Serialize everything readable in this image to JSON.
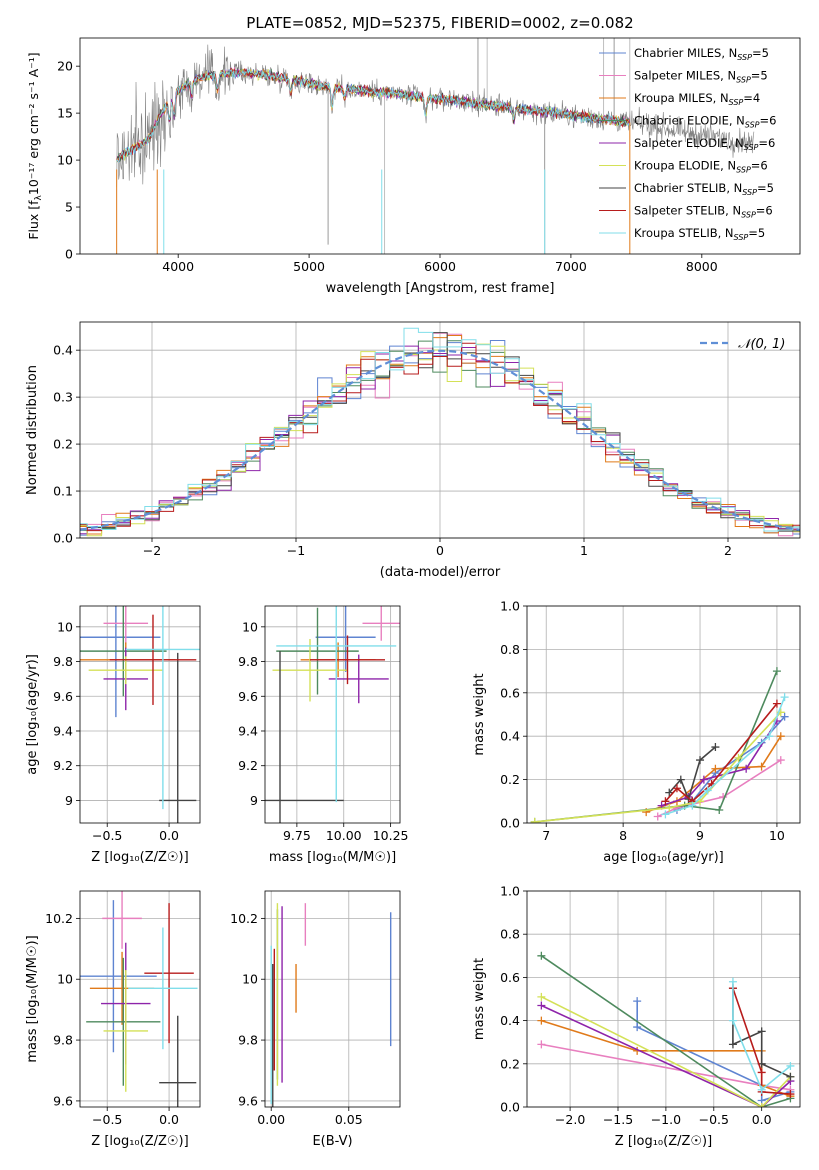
{
  "colors": {
    "Chabrier MILES": "#5f84d1",
    "Salpeter MILES": "#e87fbf",
    "Kroupa MILES": "#e07a1a",
    "Chabrier ELODIE": "#4e8a5e",
    "Salpeter ELODIE": "#8e24aa",
    "Kroupa ELODIE": "#d4e157",
    "Chabrier STELIB": "#444444",
    "Salpeter STELIB": "#b71c1c",
    "Kroupa STELIB": "#80deea",
    "data": "#808080",
    "gaussian": "#5f8fd6"
  },
  "chart_data": [
    {
      "panel": "spectrum",
      "type": "line",
      "title": "PLATE=0852, MJD=52375, FIBERID=0002, z=0.082",
      "xlabel": "wavelength [Angstrom, rest frame]",
      "ylabel": "Flux [f",
      "ylabel_sub": "λ",
      "ylabel_rest": "10⁻¹⁷ erg cm⁻² s⁻¹ A⁻¹]",
      "xlim": [
        3250,
        8750
      ],
      "ylim": [
        0,
        23
      ],
      "xticks": [
        4000,
        5000,
        6000,
        7000,
        8000
      ],
      "yticks": [
        0,
        5,
        10,
        15,
        20
      ],
      "grid": false,
      "legend_position": "top-right",
      "legend": [
        {
          "name": "Chabrier MILES",
          "nssp": "5"
        },
        {
          "name": "Salpeter MILES",
          "nssp": "5"
        },
        {
          "name": "Kroupa MILES",
          "nssp": "4"
        },
        {
          "name": "Chabrier ELODIE",
          "nssp": "6"
        },
        {
          "name": "Salpeter ELODIE",
          "nssp": "6"
        },
        {
          "name": "Kroupa ELODIE",
          "nssp": "6"
        },
        {
          "name": "Chabrier STELIB",
          "nssp": "5"
        },
        {
          "name": "Salpeter STELIB",
          "nssp": "6"
        },
        {
          "name": "Kroupa STELIB",
          "nssp": "5"
        }
      ],
      "continuum": {
        "x": [
          3530,
          3600,
          3700,
          3780,
          3850,
          3950,
          4100,
          4300,
          4500,
          4700,
          4900,
          5100,
          5300,
          5500,
          5700,
          5900,
          6100,
          6300,
          6500,
          6700,
          6900,
          7100,
          7300,
          7500,
          7700,
          7900,
          8100,
          8300,
          8400
        ],
        "y": [
          10,
          10.8,
          11.5,
          12.3,
          14.5,
          16.8,
          18.5,
          19.2,
          19.3,
          19.0,
          18.5,
          17.9,
          17.6,
          17.3,
          17.0,
          16.6,
          16.4,
          16.0,
          15.7,
          15.3,
          15.0,
          14.6,
          14.3,
          13.9,
          13.4,
          12.9,
          12.5,
          12.0,
          11.8
        ]
      },
      "model_end": 7450,
      "data_end": 8400
    },
    {
      "panel": "residuals",
      "type": "line",
      "title": "",
      "xlabel": "(data-model)/error",
      "ylabel": "Normed distribution",
      "xlim": [
        -2.5,
        2.5
      ],
      "ylim": [
        0,
        0.46
      ],
      "xticks": [
        -2,
        -1,
        0,
        1,
        2
      ],
      "yticks": [
        0,
        0.1,
        0.2,
        0.3,
        0.4
      ],
      "ytick_labels": [
        "0.0",
        "0.1",
        "0.2",
        "0.3",
        "0.4"
      ],
      "xtick_labels": [
        "−2",
        "−1",
        "0",
        "1",
        "2"
      ],
      "grid": true,
      "legend_position": "top-right",
      "legend": [
        {
          "name": "𝒩(0, 1)"
        }
      ],
      "bin_width": 0.1
    },
    {
      "panel": "Z-age",
      "type": "scatter",
      "xlabel": "Z [log₁₀(Z/Z☉)]",
      "ylabel": "age  [log₁₀(age/yr)]",
      "xlim": [
        -0.72,
        0.25
      ],
      "ylim": [
        8.87,
        10.12
      ],
      "xticks": [
        -0.5,
        0.0
      ],
      "xtick_labels": [
        "−0.5",
        "0.0"
      ],
      "yticks": [
        9.0,
        9.2,
        9.4,
        9.6,
        9.8,
        10.0
      ],
      "grid": true,
      "points": [
        {
          "series": "Chabrier MILES",
          "x": -0.43,
          "y": 9.94,
          "xerr": 0.36,
          "yerr": 0.46
        },
        {
          "series": "Salpeter MILES",
          "x": -0.35,
          "y": 10.02,
          "xerr": 0.18,
          "yerr": 0.12
        },
        {
          "series": "Kroupa MILES",
          "x": -0.35,
          "y": 9.81,
          "xerr": 0.4,
          "yerr": 0.1
        },
        {
          "series": "Chabrier ELODIE",
          "x": -0.37,
          "y": 9.86,
          "xerr": 0.35,
          "yerr": 0.26
        },
        {
          "series": "Salpeter ELODIE",
          "x": -0.35,
          "y": 9.7,
          "xerr": 0.18,
          "yerr": 0.18
        },
        {
          "series": "Kroupa ELODIE",
          "x": -0.35,
          "y": 9.75,
          "xerr": 0.3,
          "yerr": 0.08
        },
        {
          "series": "Chabrier STELIB",
          "x": 0.07,
          "y": 9.0,
          "xerr": 0.15,
          "yerr": 0.85
        },
        {
          "series": "Salpeter STELIB",
          "x": -0.13,
          "y": 9.81,
          "xerr": 0.35,
          "yerr": 0.26
        },
        {
          "series": "Kroupa STELIB",
          "x": -0.05,
          "y": 9.87,
          "xerr": 0.3,
          "yerr": 0.92
        }
      ]
    },
    {
      "panel": "mass-age",
      "type": "scatter",
      "xlabel": "mass [log₁₀(M/M☉)]",
      "ylabel": "",
      "xlim": [
        9.58,
        10.3
      ],
      "ylim": [
        8.87,
        10.12
      ],
      "xticks": [
        9.75,
        10.0,
        10.25
      ],
      "xtick_labels": [
        "9.75",
        "10.00",
        "10.25"
      ],
      "yticks": [
        9.0,
        9.2,
        9.4,
        9.6,
        9.8,
        10.0
      ],
      "grid": true,
      "points": [
        {
          "series": "Chabrier MILES",
          "x": 10.01,
          "y": 9.94,
          "xerr": 0.16,
          "yerr": 0.2
        },
        {
          "series": "Salpeter MILES",
          "x": 10.2,
          "y": 10.02,
          "xerr": 0.1,
          "yerr": 0.1
        },
        {
          "series": "Kroupa MILES",
          "x": 9.97,
          "y": 9.81,
          "xerr": 0.2,
          "yerr": 0.1
        },
        {
          "series": "Chabrier ELODIE",
          "x": 9.86,
          "y": 9.86,
          "xerr": 0.22,
          "yerr": 0.25
        },
        {
          "series": "Salpeter ELODIE",
          "x": 10.08,
          "y": 9.7,
          "xerr": 0.16,
          "yerr": 0.14
        },
        {
          "series": "Kroupa ELODIE",
          "x": 9.82,
          "y": 9.75,
          "xerr": 0.2,
          "yerr": 0.18
        },
        {
          "series": "Chabrier STELIB",
          "x": 9.66,
          "y": 9.0,
          "xerr": 0.34,
          "yerr": 0.86
        },
        {
          "series": "Salpeter STELIB",
          "x": 10.02,
          "y": 9.81,
          "xerr": 0.2,
          "yerr": 0.14
        },
        {
          "series": "Kroupa STELIB",
          "x": 9.96,
          "y": 9.89,
          "xerr": 0.32,
          "yerr": 0.9
        }
      ]
    },
    {
      "panel": "age-weight",
      "type": "line",
      "xlabel": "age  [log₁₀(age/yr)]",
      "ylabel": "mass weight",
      "xlim": [
        6.75,
        10.3
      ],
      "ylim": [
        0,
        1.0
      ],
      "xticks": [
        7,
        8,
        9,
        10
      ],
      "yticks": [
        0,
        0.2,
        0.4,
        0.6,
        0.8,
        1.0
      ],
      "ytick_labels": [
        "0.0",
        "0.2",
        "0.4",
        "0.6",
        "0.8",
        "1.0"
      ],
      "grid": true,
      "series": [
        {
          "name": "Chabrier MILES",
          "x": [
            8.7,
            8.9,
            9.2,
            9.8,
            10.1
          ],
          "y": [
            0.06,
            0.1,
            0.23,
            0.37,
            0.49
          ]
        },
        {
          "name": "Salpeter MILES",
          "x": [
            8.45,
            8.7,
            9.3,
            10.05
          ],
          "y": [
            0.03,
            0.07,
            0.12,
            0.29
          ]
        },
        {
          "name": "Kroupa MILES",
          "x": [
            8.3,
            8.7,
            9.2,
            9.8,
            10.05
          ],
          "y": [
            0.05,
            0.1,
            0.25,
            0.26,
            0.4
          ]
        },
        {
          "name": "Chabrier ELODIE",
          "x": [
            6.85,
            8.8,
            9.25,
            10.0
          ],
          "y": [
            0.005,
            0.08,
            0.06,
            0.7
          ]
        },
        {
          "name": "Salpeter ELODIE",
          "x": [
            8.5,
            8.85,
            9.05,
            9.6,
            10.0
          ],
          "y": [
            0.08,
            0.12,
            0.2,
            0.25,
            0.47
          ]
        },
        {
          "name": "Kroupa ELODIE",
          "x": [
            6.85,
            8.6,
            9.0,
            9.5,
            10.05
          ],
          "y": [
            0.005,
            0.07,
            0.1,
            0.3,
            0.51
          ]
        },
        {
          "name": "Chabrier STELIB",
          "x": [
            8.6,
            8.75,
            8.85,
            9.0,
            9.2
          ],
          "y": [
            0.14,
            0.2,
            0.11,
            0.29,
            0.35
          ]
        },
        {
          "name": "Salpeter STELIB",
          "x": [
            8.55,
            8.7,
            8.9,
            9.15,
            10.0
          ],
          "y": [
            0.1,
            0.16,
            0.1,
            0.18,
            0.55
          ]
        },
        {
          "name": "Kroupa STELIB",
          "x": [
            8.55,
            8.9,
            9.1,
            9.9,
            10.1
          ],
          "y": [
            0.04,
            0.08,
            0.15,
            0.4,
            0.58
          ]
        }
      ]
    },
    {
      "panel": "Z-mass",
      "type": "scatter",
      "xlabel": "Z [log₁₀(Z/Z☉)]",
      "ylabel": "mass [log₁₀(M/M☉)]",
      "xlim": [
        -0.72,
        0.25
      ],
      "ylim": [
        9.58,
        10.29
      ],
      "xticks": [
        -0.5,
        0.0
      ],
      "xtick_labels": [
        "−0.5",
        "0.0"
      ],
      "yticks": [
        9.6,
        9.8,
        10.0,
        10.2
      ],
      "grid": true,
      "points": [
        {
          "series": "Chabrier MILES",
          "x": -0.45,
          "y": 10.01,
          "xerr": 0.35,
          "yerr": 0.25
        },
        {
          "series": "Salpeter MILES",
          "x": -0.38,
          "y": 10.2,
          "xerr": 0.16,
          "yerr": 0.1
        },
        {
          "series": "Kroupa MILES",
          "x": -0.38,
          "y": 9.97,
          "xerr": 0.26,
          "yerr": 0.12
        },
        {
          "series": "Chabrier ELODIE",
          "x": -0.37,
          "y": 9.86,
          "xerr": 0.3,
          "yerr": 0.21
        },
        {
          "series": "Salpeter ELODIE",
          "x": -0.35,
          "y": 9.92,
          "xerr": 0.2,
          "yerr": 0.2
        },
        {
          "series": "Kroupa ELODIE",
          "x": -0.35,
          "y": 9.83,
          "xerr": 0.18,
          "yerr": 0.2
        },
        {
          "series": "Chabrier STELIB",
          "x": 0.07,
          "y": 9.66,
          "xerr": 0.15,
          "yerr": 0.22
        },
        {
          "series": "Salpeter STELIB",
          "x": 0.0,
          "y": 10.02,
          "xerr": 0.2,
          "yerr": 0.23
        },
        {
          "series": "Kroupa STELIB",
          "x": -0.05,
          "y": 9.97,
          "xerr": 0.28,
          "yerr": 0.2
        }
      ]
    },
    {
      "panel": "EBV-mass",
      "type": "scatter",
      "xlabel": "E(B-V)",
      "ylabel": "",
      "xlim": [
        -0.004,
        0.083
      ],
      "ylim": [
        9.58,
        10.29
      ],
      "xticks": [
        0.0,
        0.05
      ],
      "xtick_labels": [
        "0.00",
        "0.05"
      ],
      "yticks": [
        9.6,
        9.8,
        10.0,
        10.2
      ],
      "grid": true,
      "points": [
        {
          "series": "Chabrier MILES",
          "x": 0.077,
          "y": 10.0,
          "yerr": 0.22
        },
        {
          "series": "Salpeter MILES",
          "x": 0.022,
          "y": 10.18,
          "yerr": 0.07
        },
        {
          "series": "Kroupa MILES",
          "x": 0.016,
          "y": 9.97,
          "yerr": 0.08
        },
        {
          "series": "Chabrier ELODIE",
          "x": 0.004,
          "y": 9.95,
          "yerr": 0.28
        },
        {
          "series": "Salpeter ELODIE",
          "x": 0.007,
          "y": 9.95,
          "yerr": 0.29
        },
        {
          "series": "Kroupa ELODIE",
          "x": 0.004,
          "y": 9.95,
          "yerr": 0.3
        },
        {
          "series": "Chabrier STELIB",
          "x": 0.001,
          "y": 9.8,
          "yerr": 0.25
        },
        {
          "series": "Salpeter STELIB",
          "x": 0.002,
          "y": 9.9,
          "yerr": 0.2
        },
        {
          "series": "Kroupa STELIB",
          "x": 0.0,
          "y": 9.85,
          "yerr": 0.26
        }
      ]
    },
    {
      "panel": "Z-weight",
      "type": "line",
      "xlabel": "Z [log₁₀(Z/Z☉)]",
      "ylabel": "mass weight",
      "xlim": [
        -2.45,
        0.4
      ],
      "ylim": [
        0,
        1.0
      ],
      "xticks": [
        -2.0,
        -1.5,
        -1.0,
        -0.5,
        0.0
      ],
      "xtick_labels": [
        "−2.0",
        "−1.5",
        "−1.0",
        "−0.5",
        "0.0"
      ],
      "yticks": [
        0,
        0.2,
        0.4,
        0.6,
        0.8,
        1.0
      ],
      "ytick_labels": [
        "0.0",
        "0.2",
        "0.4",
        "0.6",
        "0.8",
        "1.0"
      ],
      "grid": true,
      "series": [
        {
          "name": "Chabrier MILES",
          "x": [
            -1.3,
            -1.3,
            0.0,
            0.0,
            0.3
          ],
          "y": [
            0.49,
            0.37,
            0.1,
            0.03,
            0.07
          ]
        },
        {
          "name": "Salpeter MILES",
          "x": [
            -2.3,
            0.0,
            0.3
          ],
          "y": [
            0.29,
            0.1,
            0.08
          ]
        },
        {
          "name": "Kroupa MILES",
          "x": [
            -2.3,
            -1.3,
            0.0,
            0.0,
            0.3
          ],
          "y": [
            0.4,
            0.26,
            0.26,
            0.1,
            0.05
          ]
        },
        {
          "name": "Chabrier ELODIE",
          "x": [
            -2.3,
            0.0,
            0.3
          ],
          "y": [
            0.7,
            0.0,
            0.04
          ]
        },
        {
          "name": "Salpeter ELODIE",
          "x": [
            -2.3,
            0.0,
            0.3
          ],
          "y": [
            0.47,
            0.0,
            0.12
          ]
        },
        {
          "name": "Kroupa ELODIE",
          "x": [
            -2.3,
            0.0,
            0.3
          ],
          "y": [
            0.51,
            0.0,
            0.14
          ]
        },
        {
          "name": "Chabrier STELIB",
          "x": [
            -0.3,
            -0.3,
            0.0,
            0.0,
            0.3
          ],
          "y": [
            0.55,
            0.29,
            0.35,
            0.2,
            0.14
          ]
        },
        {
          "name": "Salpeter STELIB",
          "x": [
            -0.3,
            0.0,
            0.0,
            0.3
          ],
          "y": [
            0.55,
            0.16,
            0.07,
            0.06
          ]
        },
        {
          "name": "Kroupa STELIB",
          "x": [
            -0.3,
            -0.3,
            0.0,
            0.3
          ],
          "y": [
            0.58,
            0.4,
            0.08,
            0.19
          ]
        }
      ]
    }
  ]
}
